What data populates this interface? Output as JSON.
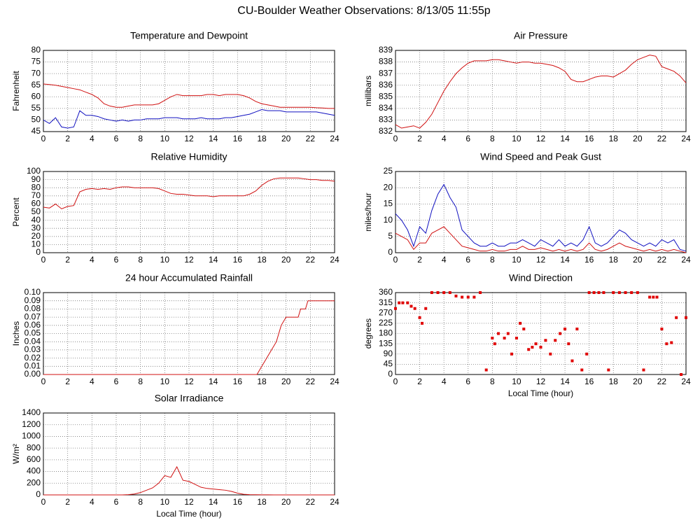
{
  "title": "CU-Boulder Weather Observations: 8/13/05 11:55p",
  "chart_data": [
    {
      "type": "line",
      "title": "Temperature and Dewpoint",
      "ylabel": "Fahrenheit",
      "x": [
        0,
        0.5,
        1,
        1.5,
        2,
        2.5,
        3,
        3.5,
        4,
        4.5,
        5,
        5.5,
        6,
        6.5,
        7,
        7.5,
        8,
        8.5,
        9,
        9.5,
        10,
        10.5,
        11,
        11.5,
        12,
        12.5,
        13,
        13.5,
        14,
        14.5,
        15,
        15.5,
        16,
        16.5,
        17,
        17.5,
        18,
        18.5,
        19,
        19.5,
        20,
        20.5,
        21,
        21.5,
        22,
        22.5,
        23,
        23.5,
        24
      ],
      "series": [
        {
          "name": "Temperature",
          "color": "#d01010",
          "values": [
            65.5,
            65.3,
            65,
            64.5,
            64,
            63.5,
            63,
            62,
            61,
            59.5,
            57,
            56,
            55.5,
            55.5,
            56,
            56.5,
            56.5,
            56.5,
            56.5,
            57,
            58.5,
            60,
            61,
            60.5,
            60.5,
            60.5,
            60.5,
            61,
            61,
            60.5,
            61,
            61,
            61,
            60.5,
            59.5,
            58,
            57,
            56.5,
            56,
            55.5,
            55.5,
            55.5,
            55.5,
            55.5,
            55.5,
            55.3,
            55.2,
            55,
            55
          ]
        },
        {
          "name": "Dewpoint",
          "color": "#1010c0",
          "values": [
            50,
            48.5,
            51,
            47,
            46.5,
            47,
            54,
            52,
            52,
            51.5,
            50.5,
            50,
            49.5,
            50,
            49.5,
            50,
            50,
            50.5,
            50.5,
            50.5,
            51,
            51,
            51,
            50.5,
            50.5,
            50.5,
            51,
            50.5,
            50.5,
            50.5,
            51,
            51,
            51.5,
            52,
            52.5,
            53.5,
            54.5,
            54,
            54,
            54,
            53.5,
            53.5,
            53.5,
            53.5,
            53.5,
            53.5,
            53,
            52.5,
            52
          ]
        }
      ],
      "xlim": [
        0,
        24
      ],
      "xticks": [
        0,
        2,
        4,
        6,
        8,
        10,
        12,
        14,
        16,
        18,
        20,
        22,
        24
      ],
      "ylim": [
        45,
        80
      ],
      "yticks": [
        45,
        50,
        55,
        60,
        65,
        70,
        75,
        80
      ],
      "grid": true
    },
    {
      "type": "line",
      "title": "Air Pressure",
      "ylabel": "millibars",
      "x": [
        0,
        0.5,
        1,
        1.5,
        2,
        2.5,
        3,
        3.5,
        4,
        4.5,
        5,
        5.5,
        6,
        6.5,
        7,
        7.5,
        8,
        8.5,
        9,
        9.5,
        10,
        10.5,
        11,
        11.5,
        12,
        12.5,
        13,
        13.5,
        14,
        14.5,
        15,
        15.5,
        16,
        16.5,
        17,
        17.5,
        18,
        18.5,
        19,
        19.5,
        20,
        20.5,
        21,
        21.5,
        22,
        22.5,
        23,
        23.5,
        24
      ],
      "series": [
        {
          "name": "Pressure",
          "color": "#d01010",
          "values": [
            832.6,
            832.3,
            832.4,
            832.5,
            832.3,
            832.8,
            833.5,
            834.5,
            835.5,
            836.3,
            837,
            837.5,
            837.9,
            838.1,
            838.1,
            838.1,
            838.2,
            838.2,
            838.1,
            838,
            837.9,
            838,
            838,
            837.9,
            837.9,
            837.8,
            837.7,
            837.5,
            837.2,
            836.5,
            836.3,
            836.3,
            836.5,
            836.7,
            836.8,
            836.8,
            836.7,
            837,
            837.3,
            837.8,
            838.2,
            838.4,
            838.6,
            838.5,
            837.6,
            837.4,
            837.2,
            836.8,
            836.2
          ]
        }
      ],
      "xlim": [
        0,
        24
      ],
      "xticks": [
        0,
        2,
        4,
        6,
        8,
        10,
        12,
        14,
        16,
        18,
        20,
        22,
        24
      ],
      "ylim": [
        832,
        839
      ],
      "yticks": [
        832,
        833,
        834,
        835,
        836,
        837,
        838,
        839
      ],
      "grid": true
    },
    {
      "type": "line",
      "title": "Relative Humidity",
      "ylabel": "Percent",
      "x": [
        0,
        0.5,
        1,
        1.5,
        2,
        2.5,
        3,
        3.5,
        4,
        4.5,
        5,
        5.5,
        6,
        6.5,
        7,
        7.5,
        8,
        8.5,
        9,
        9.5,
        10,
        10.5,
        11,
        11.5,
        12,
        12.5,
        13,
        13.5,
        14,
        14.5,
        15,
        15.5,
        16,
        16.5,
        17,
        17.5,
        18,
        18.5,
        19,
        19.5,
        20,
        20.5,
        21,
        21.5,
        22,
        22.5,
        23,
        23.5,
        24
      ],
      "series": [
        {
          "name": "Humidity",
          "color": "#d01010",
          "values": [
            56,
            55,
            60,
            54,
            57,
            58,
            75,
            78,
            79,
            78,
            79,
            78,
            80,
            81,
            81,
            80,
            80,
            80,
            80,
            79,
            76,
            73,
            72,
            72,
            71,
            70,
            70,
            70,
            69,
            70,
            70,
            70,
            70,
            70,
            72,
            76,
            83,
            88,
            91,
            92,
            92,
            92,
            92,
            91,
            90,
            90,
            89,
            89,
            88
          ]
        }
      ],
      "xlim": [
        0,
        24
      ],
      "xticks": [
        0,
        2,
        4,
        6,
        8,
        10,
        12,
        14,
        16,
        18,
        20,
        22,
        24
      ],
      "ylim": [
        0,
        100
      ],
      "yticks": [
        0,
        10,
        20,
        30,
        40,
        50,
        60,
        70,
        80,
        90,
        100
      ],
      "grid": true
    },
    {
      "type": "line",
      "title": "Wind Speed and Peak Gust",
      "ylabel": "miles/hour",
      "x": [
        0,
        0.5,
        1,
        1.5,
        2,
        2.5,
        3,
        3.5,
        4,
        4.5,
        5,
        5.5,
        6,
        6.5,
        7,
        7.5,
        8,
        8.5,
        9,
        9.5,
        10,
        10.5,
        11,
        11.5,
        12,
        12.5,
        13,
        13.5,
        14,
        14.5,
        15,
        15.5,
        16,
        16.5,
        17,
        17.5,
        18,
        18.5,
        19,
        19.5,
        20,
        20.5,
        21,
        21.5,
        22,
        22.5,
        23,
        23.5,
        24
      ],
      "series": [
        {
          "name": "Peak Gust",
          "color": "#1010c0",
          "values": [
            12,
            10,
            7,
            2,
            8,
            6,
            13,
            18,
            21,
            17,
            14,
            7,
            5,
            3,
            2,
            2,
            3,
            2,
            2,
            3,
            3,
            4,
            3,
            2,
            4,
            3,
            2,
            4,
            2,
            3,
            2,
            4,
            8,
            3,
            2,
            3,
            5,
            7,
            6,
            4,
            3,
            2,
            3,
            2,
            4,
            3,
            4,
            1,
            0.5
          ]
        },
        {
          "name": "Wind Speed",
          "color": "#d01010",
          "values": [
            6,
            5,
            4,
            1,
            3,
            3,
            6,
            7,
            8,
            6,
            4,
            2,
            1.5,
            1,
            0.5,
            0.5,
            1,
            0.5,
            0.5,
            1,
            1,
            2,
            1,
            1,
            1.5,
            1,
            0.5,
            1,
            0.5,
            1,
            0.5,
            1,
            3,
            1,
            0.5,
            1,
            2,
            3,
            2,
            1.5,
            1,
            0.5,
            1,
            0.5,
            1,
            0.5,
            1,
            0.5,
            0
          ]
        }
      ],
      "xlim": [
        0,
        24
      ],
      "xticks": [
        0,
        2,
        4,
        6,
        8,
        10,
        12,
        14,
        16,
        18,
        20,
        22,
        24
      ],
      "ylim": [
        0,
        25
      ],
      "yticks": [
        0,
        5,
        10,
        15,
        20,
        25
      ],
      "grid": true
    },
    {
      "type": "line",
      "title": "24 hour Accumulated Rainfall",
      "ylabel": "Inches",
      "x": [
        0,
        17.6,
        18,
        18.4,
        18.8,
        19.2,
        19.6,
        20,
        21,
        21.2,
        21.6,
        21.8,
        24
      ],
      "series": [
        {
          "name": "Rainfall",
          "color": "#d01010",
          "values": [
            0,
            0,
            0.01,
            0.02,
            0.03,
            0.04,
            0.06,
            0.07,
            0.07,
            0.08,
            0.08,
            0.09,
            0.09
          ]
        }
      ],
      "xlim": [
        0,
        24
      ],
      "xticks": [
        0,
        2,
        4,
        6,
        8,
        10,
        12,
        14,
        16,
        18,
        20,
        22,
        24
      ],
      "ylim": [
        0,
        0.1
      ],
      "yticks": [
        {
          "value": 0,
          "label": "0.00"
        },
        0.01,
        0.02,
        0.03,
        0.04,
        0.05,
        0.06,
        0.07,
        0.08,
        0.09,
        {
          "value": 0.1,
          "label": "0.10"
        }
      ],
      "grid": true
    },
    {
      "type": "scatter",
      "title": "Wind Direction",
      "ylabel": "degrees",
      "xlabel": "Local Time (hour)",
      "x": [
        0,
        0.3,
        0.6,
        1,
        1.3,
        1.6,
        2,
        2.2,
        2.5,
        3,
        3.5,
        4,
        4.5,
        5,
        5.5,
        6,
        6.5,
        7,
        7.5,
        8,
        8.2,
        8.5,
        9,
        9.3,
        9.6,
        10,
        10.3,
        10.6,
        11,
        11.3,
        11.6,
        12,
        12.4,
        12.8,
        13.2,
        13.6,
        14,
        14.3,
        14.6,
        15,
        15.4,
        15.8,
        16,
        16.4,
        16.8,
        17.2,
        17.6,
        18,
        18.5,
        19,
        19.5,
        20,
        20.5,
        21,
        21.3,
        21.6,
        22,
        22.4,
        22.8,
        23.2,
        23.6,
        24
      ],
      "series": [
        {
          "name": "Direction",
          "color": "#e00000",
          "values": [
            290,
            315,
            315,
            315,
            300,
            290,
            250,
            225,
            290,
            360,
            360,
            360,
            360,
            345,
            340,
            340,
            340,
            360,
            20,
            160,
            135,
            180,
            160,
            180,
            90,
            160,
            225,
            200,
            110,
            120,
            135,
            120,
            150,
            90,
            150,
            180,
            200,
            135,
            60,
            200,
            20,
            90,
            360,
            360,
            360,
            360,
            20,
            360,
            360,
            360,
            360,
            360,
            20,
            340,
            340,
            340,
            200,
            135,
            140,
            250,
            0,
            250
          ]
        }
      ],
      "xlim": [
        0,
        24
      ],
      "xticks": [
        0,
        2,
        4,
        6,
        8,
        10,
        12,
        14,
        16,
        18,
        20,
        22,
        24
      ],
      "ylim": [
        0,
        360
      ],
      "yticks": [
        0,
        45,
        90,
        135,
        180,
        225,
        270,
        315,
        360
      ],
      "grid": true
    },
    {
      "type": "line",
      "title": "Solar Irradiance",
      "ylabel": "W/m²",
      "xlabel": "Local Time (hour)",
      "x": [
        0,
        0.5,
        1,
        1.5,
        2,
        2.5,
        3,
        3.5,
        4,
        4.5,
        5,
        5.5,
        6,
        6.5,
        7,
        7.5,
        8,
        8.5,
        9,
        9.5,
        10,
        10.5,
        11,
        11.5,
        12,
        12.5,
        13,
        13.5,
        14,
        14.5,
        15,
        15.5,
        16,
        16.5,
        17,
        17.5,
        18,
        18.5,
        19,
        19.5,
        20,
        20.5,
        21,
        21.5,
        22,
        22.5,
        23,
        23.5,
        24
      ],
      "series": [
        {
          "name": "Irradiance",
          "color": "#d01010",
          "values": [
            0,
            0,
            0,
            0,
            0,
            0,
            0,
            0,
            0,
            0,
            0,
            0,
            0,
            0,
            5,
            15,
            40,
            80,
            120,
            200,
            330,
            300,
            480,
            250,
            230,
            180,
            130,
            110,
            100,
            90,
            80,
            60,
            30,
            10,
            5,
            3,
            2,
            1,
            0,
            0,
            0,
            0,
            0,
            0,
            0,
            0,
            0,
            0,
            0
          ]
        }
      ],
      "xlim": [
        0,
        24
      ],
      "xticks": [
        0,
        2,
        4,
        6,
        8,
        10,
        12,
        14,
        16,
        18,
        20,
        22,
        24
      ],
      "ylim": [
        0,
        1400
      ],
      "yticks": [
        0,
        200,
        400,
        600,
        800,
        1000,
        1200,
        1400
      ],
      "grid": true
    }
  ]
}
